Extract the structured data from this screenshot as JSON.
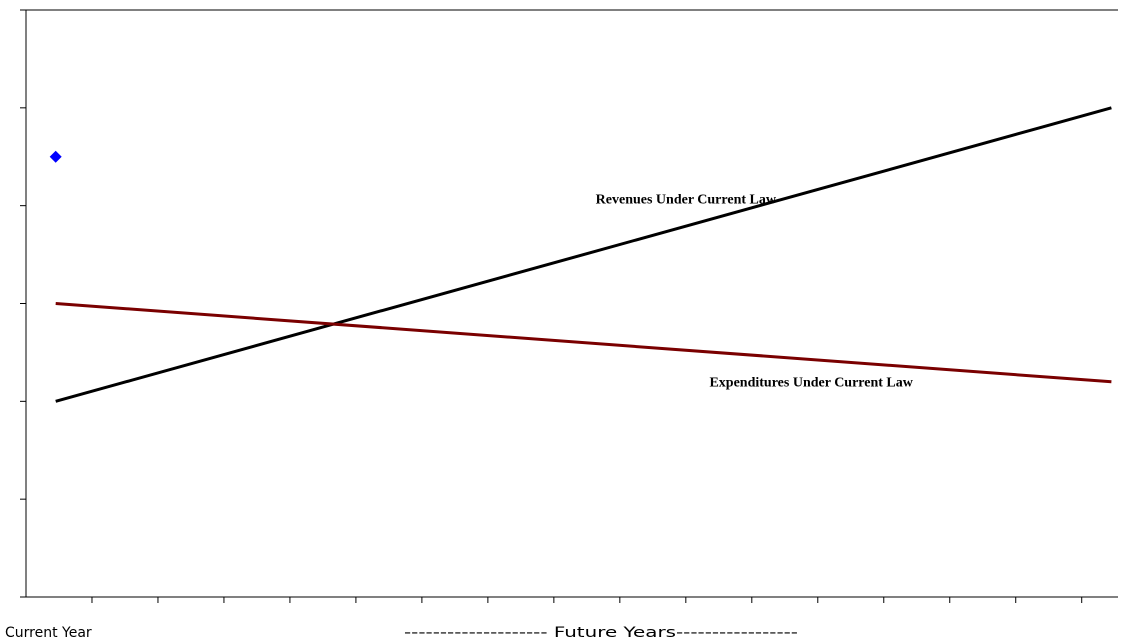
{
  "chart_data": {
    "type": "line",
    "title": "",
    "xlabel": "",
    "ylabel": "",
    "x_axis_labels": {
      "current": "Current Year",
      "future": "-------------------- Future Years-----------------"
    },
    "x_range": [
      0,
      16.55
    ],
    "ylim": [
      0,
      6
    ],
    "y_ticks": [
      0,
      1,
      2,
      3,
      4,
      5,
      6
    ],
    "x_ticks": [
      1,
      2,
      3,
      4,
      5,
      6,
      7,
      8,
      9,
      10,
      11,
      12,
      13,
      14,
      15,
      16
    ],
    "grid": false,
    "legend": "none",
    "series": [
      {
        "name": "Revenues Under Current Law",
        "color": "#000000",
        "points": [
          [
            0.45,
            2.0
          ],
          [
            16.45,
            5.0
          ]
        ],
        "label_anchor": [
          10.0,
          4.02
        ]
      },
      {
        "name": "Expenditures Under Current Law",
        "color": "#7a0000",
        "points": [
          [
            0.45,
            3.0
          ],
          [
            16.45,
            2.2
          ]
        ],
        "label_anchor": [
          11.9,
          2.15
        ]
      }
    ],
    "markers": [
      {
        "x": 0.45,
        "y": 4.5,
        "shape": "diamond",
        "color": "#0000ff"
      }
    ]
  }
}
